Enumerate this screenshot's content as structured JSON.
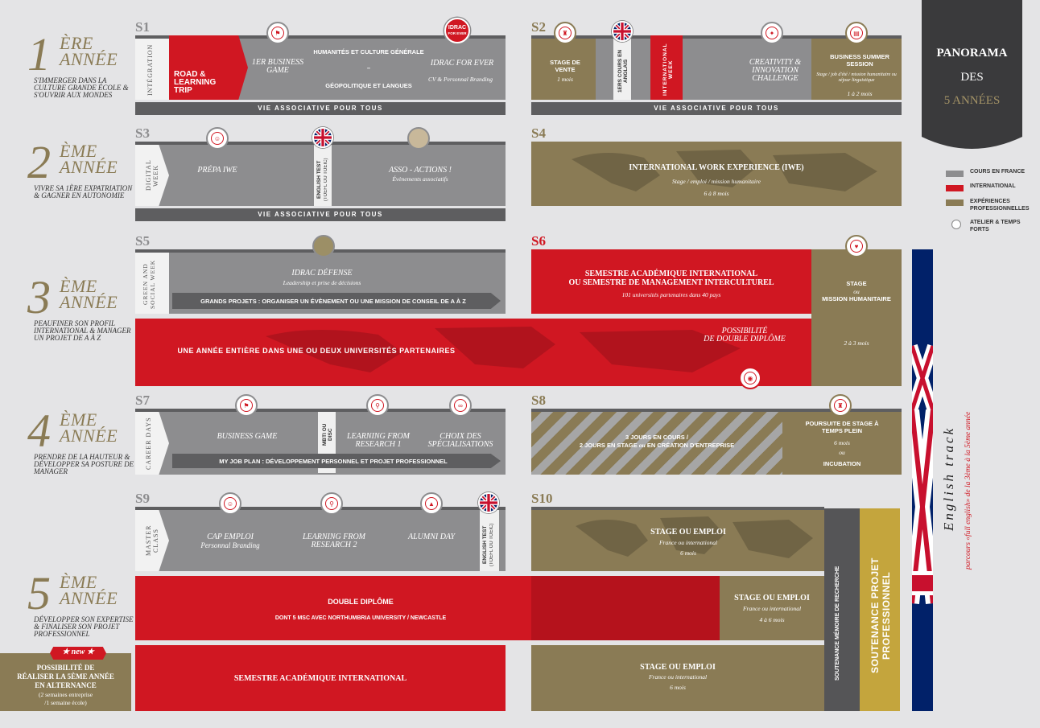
{
  "panorama": {
    "line1": "PANORAMA",
    "line2": "DES",
    "line3": "5 ANNÉES"
  },
  "legend": [
    {
      "label": "COURS EN FRANCE",
      "color": "#8d8d8f"
    },
    {
      "label": "INTERNATIONAL",
      "color": "#d01722"
    },
    {
      "label": "EXPÉRIENCES PROFESSIONNELLES",
      "color": "#8a7b55"
    },
    {
      "label": "ATELIER & TEMPS FORTS",
      "color": "#ffffff"
    }
  ],
  "years": [
    {
      "num": "1",
      "ere1": "ÈRE",
      "ere2": "ANNÉE",
      "desc": "S'IMMERGER DANS LA CULTURE GRANDE ÉCOLE & S'OUVRIR AUX MONDES"
    },
    {
      "num": "2",
      "ere1": "ÈME",
      "ere2": "ANNÉE",
      "desc": "VIVRE SA 1ÈRE EXPATRIATION & GAGNER EN AUTONOMIE"
    },
    {
      "num": "3",
      "ere1": "ÈME",
      "ere2": "ANNÉE",
      "desc": "PEAUFINER SON PROFIL INTERNATIONAL & MANAGER UN PROJET DE A À Z"
    },
    {
      "num": "4",
      "ere1": "ÈME",
      "ere2": "ANNÉE",
      "desc": "PRENDRE DE LA HAUTEUR & DÉVELOPPER SA POSTURE DE MANAGER"
    },
    {
      "num": "5",
      "ere1": "ÈME",
      "ere2": "ANNÉE",
      "desc": "DÉVELOPPER SON EXPERTISE & FINALISER SON PROJET PROFESSIONNEL"
    }
  ],
  "semesters": {
    "s1": "S1",
    "s2": "S2",
    "s3": "S3",
    "s4": "S4",
    "s5": "S5",
    "s6": "S6",
    "s7": "S7",
    "s8": "S8",
    "s9": "S9",
    "s10": "S10"
  },
  "vie_associative": "VIE ASSOCIATIVE POUR TOUS",
  "s1": {
    "tab": "INTÉGRATION",
    "road": "ROAD & LEARNING TRIP",
    "business_game": "1ER BUSINESS GAME",
    "humanites": "HUMANITÉS ET CULTURE GÉNÉRALE",
    "dash": "–",
    "geopolitique": "GÉOPOLITIQUE ET LANGUES",
    "idrac_logo1": "IDRAC",
    "idrac_logo2": "FOR EVER",
    "idrac_title": "IDRAC FOR EVER",
    "idrac_sub": "CV & Personnal Branding"
  },
  "s2": {
    "stage_title": "STAGE DE VENTE",
    "stage_dur": "1 mois",
    "cours_en_anglais": "1ERS COURS EN ANGLAIS",
    "intl_week": "INTERNATIONAL WEEK",
    "creativity": "CREATIVITY & INNOVATION CHALLENGE",
    "summer_title": "BUSINESS SUMMER SESSION",
    "summer_sub": "Stage / job d'été / mission humanitaire ou séjour linguistique",
    "summer_dur": "1 à 2 mois"
  },
  "s3": {
    "tab": "DIGITAL WEEK",
    "prepa": "PRÉPA IWE",
    "english_test": "ENGLISH TEST",
    "english_test_sub": "(TOEFL OU TOEIC)",
    "asso": "ASSO - ACTIONS !",
    "asso_sub": "Évènements associatifs"
  },
  "s4": {
    "title": "INTERNATIONAL WORK EXPERIENCE (IWE)",
    "sub": "Stage / emploi / mission humanitaire",
    "dur": "6 à 8 mois"
  },
  "s5": {
    "tab": "GREEN AND SOCIAL WEEK",
    "defense": "IDRAC DÉFENSE",
    "defense_sub": "Leadership et prise de décisions",
    "grands_projets": "GRANDS PROJETS : ORGANISER UN ÉVÈNEMENT OU UNE MISSION DE CONSEIL DE A À Z"
  },
  "s6": {
    "title1": "SEMESTRE ACADÉMIQUE INTERNATIONAL",
    "title2": "OU SEMESTRE DE MANAGEMENT INTERCULTUREL",
    "sub": "101 universités partenaires dans 40 pays",
    "stage": "STAGE",
    "ou": "ou",
    "mission": "MISSION HUMANITAIRE",
    "dur": "2 à 3 mois"
  },
  "year3_full": {
    "label": "UNE ANNÉE ENTIÈRE DANS UNE OU DEUX UNIVERSITÉS PARTENAIRES",
    "double1": "POSSIBILITÉ",
    "double2": "DE DOUBLE DIPLÔME"
  },
  "s7": {
    "tab": "CAREER DAYS",
    "business_game": "BUSINESS GAME",
    "mbti": "MBTI ou DISC",
    "learning": "LEARNING FROM RESEARCH 1",
    "choix": "CHOIX DES SPÉCIALISATIONS",
    "job_plan": "MY JOB PLAN : DÉVELOPPEMENT PERSONNEL ET PROJET PROFESSIONNEL"
  },
  "s8": {
    "line1": "3 JOURS EN COURS /",
    "line2_a": "2 JOURS EN STAGE ",
    "line2_ou": "ou",
    "line2_b": " EN CRÉATION D'ENTREPRISE",
    "poursuite": "POURSUITE DE STAGE À TEMPS PLEIN",
    "dur": "6 mois",
    "ou": "ou",
    "incubation": "INCUBATION"
  },
  "s9": {
    "tab": "MASTER CLASS",
    "cap": "CAP EMPLOI",
    "cap_sub": "Personnal Branding",
    "learning": "LEARNING FROM RESEARCH 2",
    "alumni": "ALUMNI DAY",
    "english_test": "ENGLISH TEST",
    "english_test_sub": "(TOEFL OU TOEIC)"
  },
  "s10": {
    "title": "STAGE OU EMPLOI",
    "sub": "France ou international",
    "dur": "6 mois"
  },
  "year5_row1": {
    "double": "DOUBLE DIPLÔME",
    "dont": "DONT 5 MSc AVEC NORTHUMBRIA UNIVERSITY / NEWCASTLE",
    "stage": "STAGE OU EMPLOI",
    "stage_sub": "France ou international",
    "stage_dur": "4 à 6 mois"
  },
  "year5_row2": {
    "semestre": "SEMESTRE ACADÉMIQUE INTERNATIONAL",
    "stage": "STAGE OU EMPLOI",
    "stage_sub": "France ou international",
    "stage_dur": "6 mois"
  },
  "soutenance_memoire": "SOUTENANCE MÉMOIRE DE RECHERCHE",
  "soutenance_projet": "SOUTENANCE PROJET PROFESSIONNEL",
  "english_track": "English track",
  "english_track_sub": "parcours «full english» de la 3ème à la 5ème année",
  "new_badge": "★ new ★",
  "alternance": {
    "line1": "POSSIBILITÉ DE",
    "line2": "RÉALISER LA 5ÈME ANNÉE",
    "line3": "EN ALTERNANCE",
    "line4": "(2 semaines entreprise",
    "line5": "/1 semaine école)"
  }
}
